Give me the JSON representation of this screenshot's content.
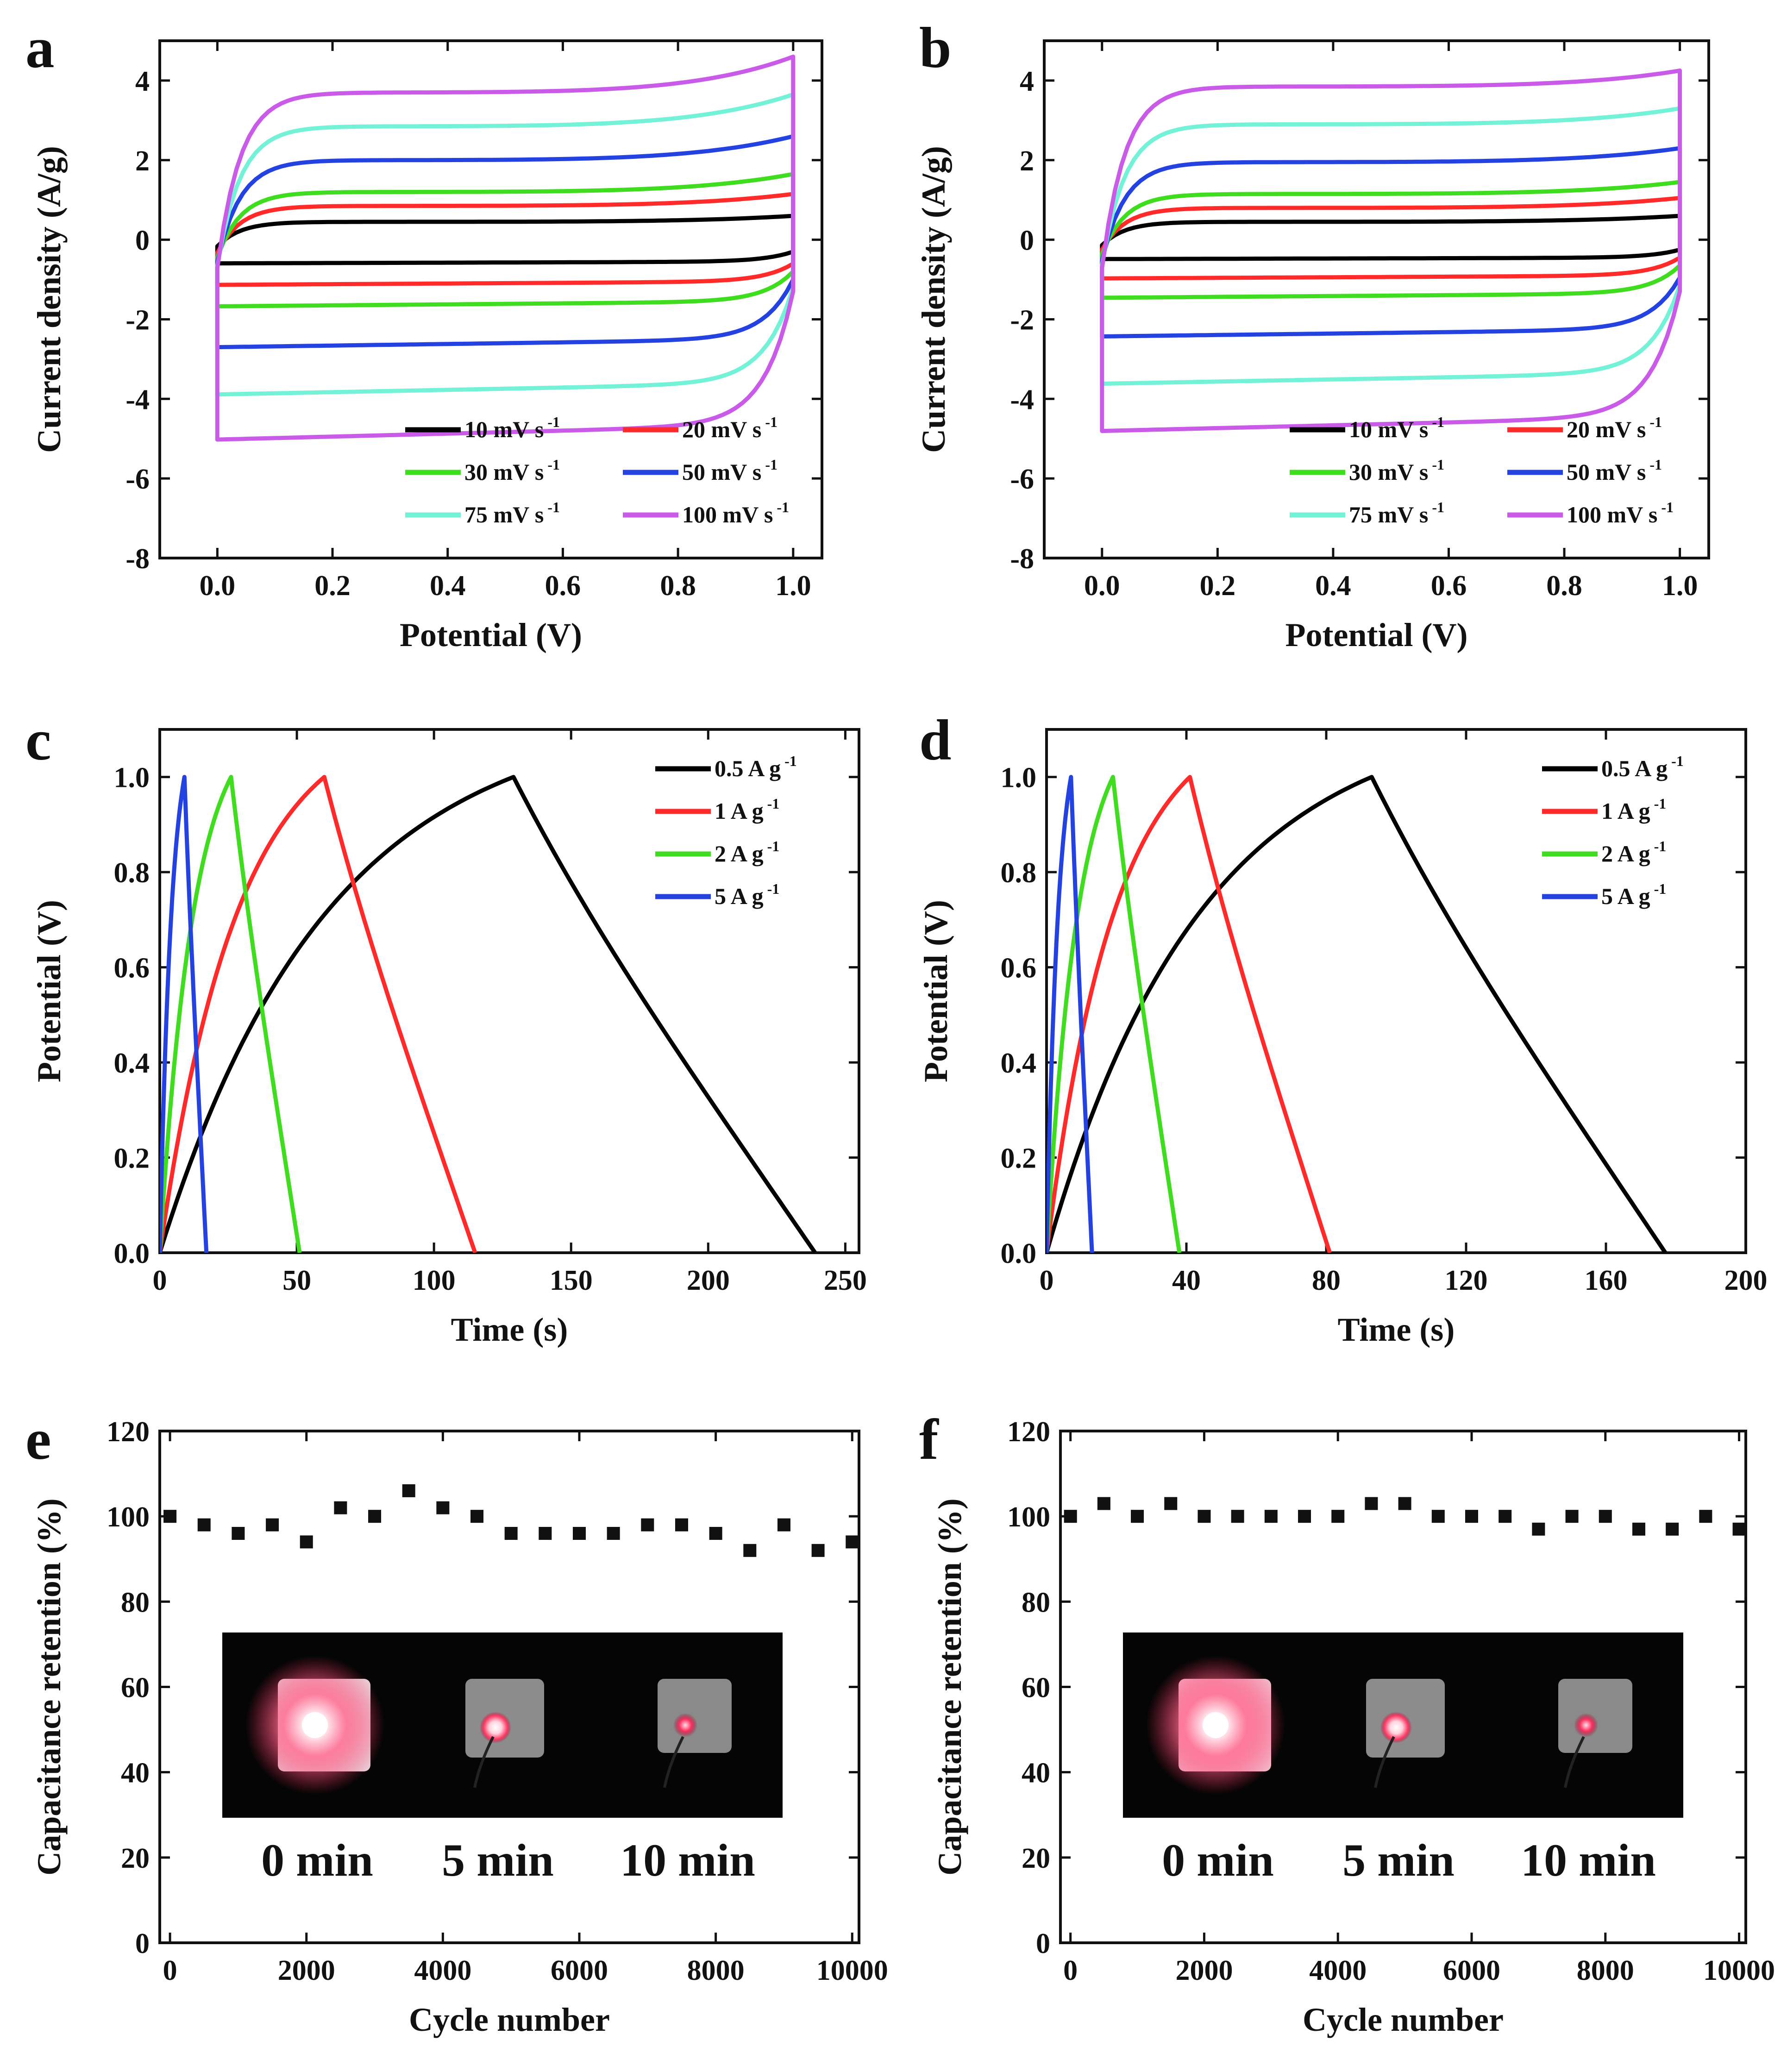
{
  "chart_data": [
    {
      "panel": "a",
      "type": "line",
      "subtype": "cyclic-voltammetry",
      "xlabel": "Potential (V)",
      "ylabel": "Current density (A/g)",
      "xlim": [
        -0.1,
        1.05
      ],
      "ylim": [
        -8,
        5
      ],
      "xticks": [
        "0.0",
        "0.2",
        "0.4",
        "0.6",
        "0.8",
        "1.0"
      ],
      "yticks": [
        "-8",
        "-6",
        "-4",
        "-2",
        "0",
        "2",
        "4"
      ],
      "legend_position": "bottom-right",
      "series": [
        {
          "name": "10 mV s",
          "sup": "-1",
          "color": "#000000",
          "upper": 0.45,
          "lower": -0.55,
          "end_hi": 0.6,
          "end_lo": -0.3
        },
        {
          "name": "20 mV s",
          "sup": "-1",
          "color": "#ff2b2b",
          "upper": 0.85,
          "lower": -1.05,
          "end_hi": 1.15,
          "end_lo": -0.6
        },
        {
          "name": "30 mV s",
          "sup": "-1",
          "color": "#3fdc1f",
          "upper": 1.2,
          "lower": -1.55,
          "end_hi": 1.65,
          "end_lo": -0.8
        },
        {
          "name": "50 mV s",
          "sup": "-1",
          "color": "#2342e0",
          "upper": 2.0,
          "lower": -2.5,
          "end_hi": 2.6,
          "end_lo": -1.0
        },
        {
          "name": "75 mV s",
          "sup": "-1",
          "color": "#73f2d8",
          "upper": 2.85,
          "lower": -3.6,
          "end_hi": 3.65,
          "end_lo": -1.2
        },
        {
          "name": "100 mV s",
          "sup": "-1",
          "color": "#c95be8",
          "upper": 3.7,
          "lower": -4.65,
          "end_hi": 4.6,
          "end_lo": -1.3
        }
      ]
    },
    {
      "panel": "b",
      "type": "line",
      "subtype": "cyclic-voltammetry",
      "xlabel": "Potential (V)",
      "ylabel": "Current density (A/g)",
      "xlim": [
        -0.1,
        1.05
      ],
      "ylim": [
        -8,
        5
      ],
      "xticks": [
        "0.0",
        "0.2",
        "0.4",
        "0.6",
        "0.8",
        "1.0"
      ],
      "yticks": [
        "-8",
        "-6",
        "-4",
        "-2",
        "0",
        "2",
        "4"
      ],
      "legend_position": "bottom-right",
      "series": [
        {
          "name": "10 mV s",
          "sup": "-1",
          "color": "#000000",
          "upper": 0.45,
          "lower": -0.45,
          "end_hi": 0.6,
          "end_lo": -0.25
        },
        {
          "name": "20 mV s",
          "sup": "-1",
          "color": "#ff2b2b",
          "upper": 0.8,
          "lower": -0.9,
          "end_hi": 1.05,
          "end_lo": -0.45
        },
        {
          "name": "30 mV s",
          "sup": "-1",
          "color": "#3fdc1f",
          "upper": 1.15,
          "lower": -1.35,
          "end_hi": 1.45,
          "end_lo": -0.65
        },
        {
          "name": "50 mV s",
          "sup": "-1",
          "color": "#2342e0",
          "upper": 1.95,
          "lower": -2.25,
          "end_hi": 2.3,
          "end_lo": -0.95
        },
        {
          "name": "75 mV s",
          "sup": "-1",
          "color": "#73f2d8",
          "upper": 2.9,
          "lower": -3.35,
          "end_hi": 3.3,
          "end_lo": -1.15
        },
        {
          "name": "100 mV s",
          "sup": "-1",
          "color": "#c95be8",
          "upper": 3.85,
          "lower": -4.45,
          "end_hi": 4.25,
          "end_lo": -1.3
        }
      ]
    },
    {
      "panel": "c",
      "type": "line",
      "subtype": "charge-discharge",
      "xlabel": "Time (s)",
      "ylabel": "Potential (V)",
      "xlim": [
        0,
        255
      ],
      "ylim": [
        0,
        1.1
      ],
      "xticks": [
        "0",
        "50",
        "100",
        "150",
        "200",
        "250"
      ],
      "yticks": [
        "0.0",
        "0.2",
        "0.4",
        "0.6",
        "0.8",
        "1.0"
      ],
      "legend_position": "top-right",
      "series": [
        {
          "name": "0.5 A g",
          "sup": "-1",
          "color": "#000000",
          "peak": 129,
          "end": 239
        },
        {
          "name": "1 A g",
          "sup": "-1",
          "color": "#ff2b2b",
          "peak": 60,
          "end": 115
        },
        {
          "name": "2 A g",
          "sup": "-1",
          "color": "#3fdc1f",
          "peak": 26,
          "end": 51
        },
        {
          "name": "5 A g",
          "sup": "-1",
          "color": "#2342e0",
          "peak": 9,
          "end": 17
        }
      ]
    },
    {
      "panel": "d",
      "type": "line",
      "subtype": "charge-discharge",
      "xlabel": "Time (s)",
      "ylabel": "Potential (V)",
      "xlim": [
        0,
        200
      ],
      "ylim": [
        0,
        1.1
      ],
      "xticks": [
        "0",
        "40",
        "80",
        "120",
        "160",
        "200"
      ],
      "yticks": [
        "0.0",
        "0.2",
        "0.4",
        "0.6",
        "0.8",
        "1.0"
      ],
      "legend_position": "top-right",
      "series": [
        {
          "name": "0.5 A g",
          "sup": "-1",
          "color": "#000000",
          "peak": 93,
          "end": 177
        },
        {
          "name": "1 A g",
          "sup": "-1",
          "color": "#ff2b2b",
          "peak": 41,
          "end": 81
        },
        {
          "name": "2 A g",
          "sup": "-1",
          "color": "#3fdc1f",
          "peak": 19,
          "end": 38
        },
        {
          "name": "5 A g",
          "sup": "-1",
          "color": "#2342e0",
          "peak": 7,
          "end": 13
        }
      ]
    },
    {
      "panel": "e",
      "type": "scatter",
      "xlabel": "Cycle number",
      "ylabel": "Capacitance retention (%)",
      "xlim": [
        -150,
        10100
      ],
      "ylim": [
        0,
        120
      ],
      "xticks": [
        "0",
        "2000",
        "4000",
        "6000",
        "8000",
        "10000"
      ],
      "yticks": [
        "0",
        "20",
        "40",
        "60",
        "80",
        "100",
        "120"
      ],
      "x": [
        0,
        500,
        1000,
        1500,
        2000,
        2500,
        3000,
        3500,
        4000,
        4500,
        5000,
        5500,
        6000,
        6500,
        7000,
        7500,
        8000,
        8500,
        9000,
        9500,
        10000
      ],
      "y": [
        100,
        98,
        96,
        98,
        94,
        102,
        100,
        106,
        102,
        100,
        96,
        96,
        96,
        96,
        98,
        98,
        96,
        92,
        98,
        92,
        94
      ],
      "inset": {
        "labels": [
          "0 min",
          "5 min",
          "10 min"
        ],
        "description_tokens": [
          "led-lit-device-photo"
        ]
      }
    },
    {
      "panel": "f",
      "type": "scatter",
      "xlabel": "Cycle number",
      "ylabel": "Capacitance retention (%)",
      "xlim": [
        -150,
        10100
      ],
      "ylim": [
        0,
        120
      ],
      "xticks": [
        "0",
        "2000",
        "4000",
        "6000",
        "8000",
        "10000"
      ],
      "yticks": [
        "0",
        "20",
        "40",
        "60",
        "80",
        "100",
        "120"
      ],
      "x": [
        0,
        500,
        1000,
        1500,
        2000,
        2500,
        3000,
        3500,
        4000,
        4500,
        5000,
        5500,
        6000,
        6500,
        7000,
        7500,
        8000,
        8500,
        9000,
        9500,
        10000
      ],
      "y": [
        100,
        103,
        100,
        103,
        100,
        100,
        100,
        100,
        100,
        103,
        103,
        100,
        100,
        100,
        97,
        100,
        100,
        97,
        97,
        100,
        97
      ],
      "inset": {
        "labels": [
          "0 min",
          "5 min",
          "10 min"
        ]
      }
    }
  ]
}
